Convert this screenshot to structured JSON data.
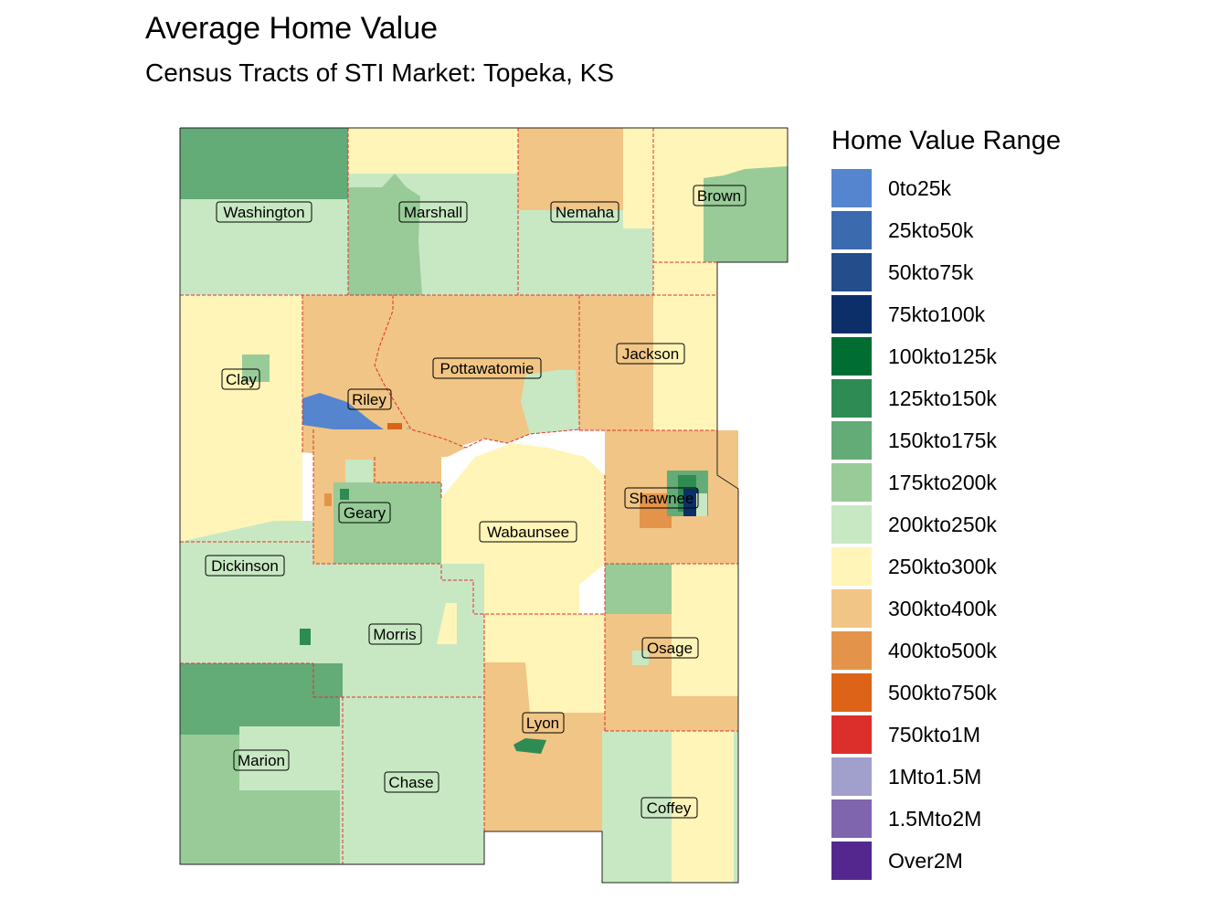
{
  "title": "Average Home Value",
  "subtitle": "Census Tracts of STI Market: Topeka, KS",
  "legend": {
    "title": "Home Value Range",
    "items": [
      {
        "label": "0to25k",
        "color": "#5585cf"
      },
      {
        "label": "25kto50k",
        "color": "#3b6aae"
      },
      {
        "label": "50kto75k",
        "color": "#234d8b"
      },
      {
        "label": "75kto100k",
        "color": "#0c2f6a"
      },
      {
        "label": "100kto125k",
        "color": "#006d33"
      },
      {
        "label": "125kto150k",
        "color": "#2e8b53"
      },
      {
        "label": "150kto175k",
        "color": "#63ab77"
      },
      {
        "label": "175kto200k",
        "color": "#98cb97"
      },
      {
        "label": "200kto250k",
        "color": "#c8e8c3"
      },
      {
        "label": "250kto300k",
        "color": "#fff5b8"
      },
      {
        "label": "300kto400k",
        "color": "#f1c585"
      },
      {
        "label": "400kto500k",
        "color": "#e4944a"
      },
      {
        "label": "500kto750k",
        "color": "#dc6317"
      },
      {
        "label": "750kto1M",
        "color": "#dc2f2c"
      },
      {
        "label": "1Mto1.5M",
        "color": "#a19fcb"
      },
      {
        "label": "1.5Mto2M",
        "color": "#7e65ad"
      },
      {
        "label": "Over2M",
        "color": "#54278f"
      }
    ]
  },
  "counties": [
    "Washington",
    "Marshall",
    "Nemaha",
    "Brown",
    "Clay",
    "Riley",
    "Pottawatomie",
    "Jackson",
    "Shawnee",
    "Geary",
    "Wabaunsee",
    "Dickinson",
    "Morris",
    "Osage",
    "Lyon",
    "Marion",
    "Chase",
    "Coffey"
  ]
}
